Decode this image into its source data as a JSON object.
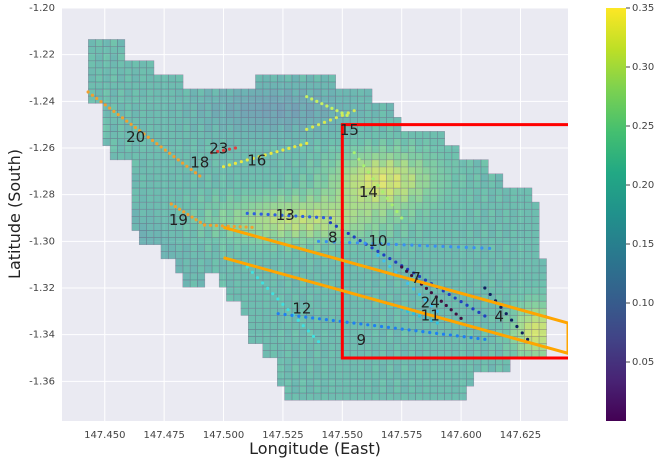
{
  "chart_data": {
    "type": "heatmap",
    "xlabel": "Longitude (East)",
    "ylabel": "Latitude (South)",
    "xlim": [
      147.432,
      147.645
    ],
    "ylim": [
      -1.377,
      -1.2
    ],
    "xticks": [
      "147.450",
      "147.475",
      "147.500",
      "147.525",
      "147.550",
      "147.575",
      "147.600",
      "147.625"
    ],
    "xtick_values": [
      147.45,
      147.475,
      147.5,
      147.525,
      147.55,
      147.575,
      147.6,
      147.625
    ],
    "yticks": [
      "-1.20",
      "-1.22",
      "-1.24",
      "-1.26",
      "-1.28",
      "-1.30",
      "-1.32",
      "-1.34",
      "-1.36"
    ],
    "ytick_values": [
      -1.2,
      -1.22,
      -1.24,
      -1.26,
      -1.28,
      -1.3,
      -1.32,
      -1.34,
      -1.36
    ],
    "grid": true,
    "colorbar": {
      "colormap": "viridis",
      "range": [
        0,
        0.35
      ],
      "ticks": [
        "0.05",
        "0.10",
        "0.15",
        "0.20",
        "0.25",
        "0.30",
        "0.35"
      ],
      "tick_values": [
        0.05,
        0.1,
        0.15,
        0.2,
        0.25,
        0.3,
        0.35
      ]
    },
    "track_labels": [
      {
        "text": "20",
        "lon": 147.463,
        "lat": -1.2555
      },
      {
        "text": "23",
        "lon": 147.498,
        "lat": -1.2605
      },
      {
        "text": "18",
        "lon": 147.49,
        "lat": -1.2665
      },
      {
        "text": "16",
        "lon": 147.514,
        "lat": -1.2655
      },
      {
        "text": "15",
        "lon": 147.553,
        "lat": -1.2525
      },
      {
        "text": "14",
        "lon": 147.561,
        "lat": -1.279
      },
      {
        "text": "19",
        "lon": 147.481,
        "lat": -1.291
      },
      {
        "text": "13",
        "lon": 147.526,
        "lat": -1.289
      },
      {
        "text": "8",
        "lon": 147.546,
        "lat": -1.2985
      },
      {
        "text": "10",
        "lon": 147.565,
        "lat": -1.3
      },
      {
        "text": "7",
        "lon": 147.581,
        "lat": -1.316
      },
      {
        "text": "24",
        "lon": 147.587,
        "lat": -1.3265
      },
      {
        "text": "11",
        "lon": 147.587,
        "lat": -1.332
      },
      {
        "text": "4",
        "lon": 147.616,
        "lat": -1.3325
      },
      {
        "text": "12",
        "lon": 147.533,
        "lat": -1.329
      },
      {
        "text": "9",
        "lon": 147.558,
        "lat": -1.3425
      }
    ],
    "red_box": {
      "lon_min": 147.55,
      "lon_max": 147.645,
      "lat_min": -1.35,
      "lat_max": -1.25
    },
    "orange_polygon": [
      [
        147.5,
        -1.294
      ],
      [
        147.645,
        -1.335
      ],
      [
        147.645,
        -1.348
      ],
      [
        147.5,
        -1.307
      ]
    ]
  },
  "colors": {
    "background": "#EAEAF2",
    "grid": "#ffffff",
    "red_box": "#FF0000",
    "orange_polygon": "#FFA500"
  }
}
